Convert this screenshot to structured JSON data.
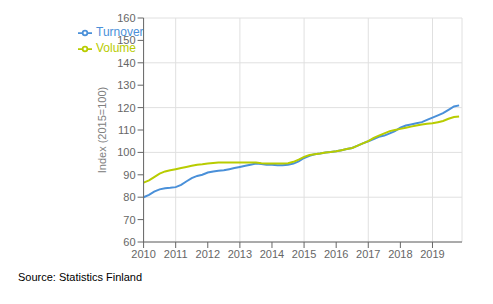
{
  "chart_data": {
    "type": "line",
    "y_label": "Index (2015=100)",
    "annotations": [
      "Source: Statistics Finland"
    ],
    "x": [
      2010.0,
      2010.17,
      2010.33,
      2010.5,
      2010.67,
      2010.83,
      2011.0,
      2011.17,
      2011.33,
      2011.5,
      2011.67,
      2011.83,
      2012.0,
      2012.17,
      2012.33,
      2012.5,
      2012.67,
      2012.83,
      2013.0,
      2013.17,
      2013.33,
      2013.5,
      2013.67,
      2013.83,
      2014.0,
      2014.17,
      2014.33,
      2014.5,
      2014.67,
      2014.83,
      2015.0,
      2015.17,
      2015.33,
      2015.5,
      2015.67,
      2015.83,
      2016.0,
      2016.17,
      2016.33,
      2016.5,
      2016.67,
      2016.83,
      2017.0,
      2017.17,
      2017.33,
      2017.5,
      2017.67,
      2017.83,
      2018.0,
      2018.17,
      2018.33,
      2018.5,
      2018.67,
      2018.83,
      2019.0,
      2019.17,
      2019.33,
      2019.5,
      2019.67,
      2019.83
    ],
    "series": [
      {
        "name": "Turnover",
        "color": "#4a90d9",
        "values": [
          80.0,
          81.0,
          82.5,
          83.5,
          84.0,
          84.2,
          84.5,
          85.5,
          87.0,
          88.5,
          89.5,
          90.0,
          91.0,
          91.5,
          91.8,
          92.0,
          92.5,
          93.0,
          93.5,
          94.0,
          94.5,
          95.0,
          94.8,
          94.5,
          94.5,
          94.3,
          94.3,
          94.5,
          95.0,
          96.0,
          97.5,
          98.5,
          99.2,
          99.5,
          100.0,
          100.2,
          100.5,
          101.0,
          101.5,
          102.0,
          103.0,
          104.0,
          105.0,
          106.0,
          107.0,
          107.5,
          108.5,
          109.5,
          111.0,
          112.0,
          112.5,
          113.0,
          113.5,
          114.5,
          115.5,
          116.5,
          117.5,
          119.0,
          120.5,
          121.0
        ]
      },
      {
        "name": "Volume",
        "color": "#b8cc00",
        "values": [
          86.5,
          87.5,
          89.0,
          90.5,
          91.5,
          92.0,
          92.5,
          93.0,
          93.5,
          94.0,
          94.5,
          94.7,
          95.0,
          95.3,
          95.5,
          95.5,
          95.5,
          95.5,
          95.5,
          95.5,
          95.5,
          95.5,
          95.2,
          95.0,
          95.0,
          95.0,
          95.0,
          95.2,
          95.8,
          96.8,
          98.0,
          98.8,
          99.2,
          99.5,
          100.0,
          100.2,
          100.5,
          101.0,
          101.5,
          102.0,
          103.0,
          104.0,
          105.0,
          106.5,
          107.5,
          108.5,
          109.5,
          110.0,
          110.5,
          111.0,
          111.5,
          112.0,
          112.5,
          112.8,
          113.0,
          113.5,
          114.0,
          115.0,
          115.8,
          116.0
        ]
      }
    ],
    "xlim": [
      2010.0,
      2019.92
    ],
    "xticks": [
      2010,
      2011,
      2012,
      2013,
      2014,
      2015,
      2016,
      2017,
      2018,
      2019
    ],
    "ylim": [
      60,
      160
    ],
    "yticks": [
      60,
      70,
      80,
      90,
      100,
      110,
      120,
      130,
      140,
      150,
      160
    ],
    "grid": true,
    "legend": "upper left"
  }
}
